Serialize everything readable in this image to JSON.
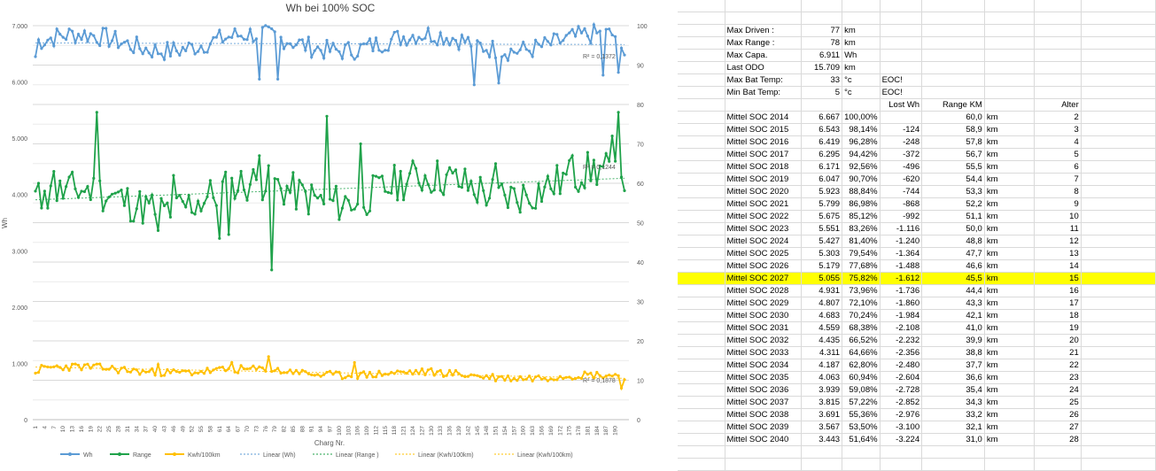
{
  "chart_data": {
    "type": "line",
    "title": "Wh bei 100% SOC",
    "xlabel": "Charg Nr.",
    "ylabel": "Wh",
    "y_left_ticks": [
      "0",
      "1.000",
      "2.000",
      "3.000",
      "4.000",
      "5.000",
      "6.000",
      "7.000"
    ],
    "y_left_lim": [
      0,
      7000
    ],
    "y_right_ticks": [
      "0",
      "10",
      "20",
      "30",
      "40",
      "50",
      "60",
      "70",
      "80",
      "90",
      "100"
    ],
    "y_right_lim": [
      0,
      100
    ],
    "x_ticks": [
      "1",
      "4",
      "7",
      "10",
      "13",
      "16",
      "19",
      "22",
      "25",
      "28",
      "31",
      "34",
      "37",
      "40",
      "43",
      "46",
      "49",
      "52",
      "55",
      "58",
      "61",
      "64",
      "67",
      "70",
      "73",
      "76",
      "79",
      "82",
      "85",
      "88",
      "91",
      "94",
      "97",
      "100",
      "103",
      "106",
      "109",
      "112",
      "115",
      "118",
      "121",
      "124",
      "127",
      "130",
      "133",
      "136",
      "139",
      "142",
      "145",
      "148",
      "151",
      "154",
      "157",
      "160",
      "163",
      "166",
      "169",
      "172",
      "175",
      "178",
      "181",
      "184",
      "187",
      "190"
    ],
    "grid": true,
    "legend_position": "bottom",
    "legend": [
      "Wh",
      "Range",
      "Kwh/100km",
      "Linear (Wh)",
      "Linear (Range )",
      "Linear (Kwh/100km)",
      "Linear (Kwh/100km)"
    ],
    "annotations": [
      "R² = 0,1372",
      "R² = 0,1244",
      "R² = 0,1878"
    ],
    "colors": {
      "wh": "#5b9bd5",
      "range": "#1fa24a",
      "kwh": "#ffc000"
    },
    "series": [
      {
        "name": "Wh",
        "axis": "left",
        "key": "wh",
        "base": 6700,
        "amp": 150,
        "noise": 180,
        "seed": 7,
        "end": [
          6600,
          6480
        ],
        "dips": [
          [
            73,
            6050
          ],
          [
            79,
            6050
          ],
          [
            143,
            5950
          ],
          [
            151,
            5980
          ],
          [
            185,
            6120
          ],
          [
            190,
            6170
          ]
        ],
        "first": [
          6450,
          6750
        ]
      },
      {
        "name": "Range",
        "axis": "right",
        "key": "range",
        "base": 58,
        "amp": 3,
        "noise": 5,
        "seed": 11,
        "trend": [
          0.03,
          -3
        ],
        "spikes": [
          [
            20,
            78
          ],
          [
            95,
            77
          ],
          [
            3,
            58
          ],
          [
            6,
            63
          ],
          [
            45,
            62
          ],
          [
            73,
            27
          ],
          [
            77,
            38
          ],
          [
            40,
            48
          ],
          [
            63,
            47
          ],
          [
            60,
            46
          ],
          [
            73,
            67
          ],
          [
            106,
            70
          ],
          [
            150,
            65
          ],
          [
            190,
            78
          ],
          [
            188,
            72
          ],
          [
            175,
            67
          ]
        ],
        "first": [
          58,
          60
        ]
      },
      {
        "name": "Kwh/100km",
        "axis": "right",
        "key": "kwh",
        "base": 12,
        "amp": 0.6,
        "noise": 1,
        "seed": 23,
        "trend": [
          -0.012,
          1
        ],
        "spikes": [
          [
            40,
            14
          ],
          [
            64,
            14.5
          ],
          [
            76,
            16
          ],
          [
            104,
            14.5
          ],
          [
            85,
            12.5
          ],
          [
            191,
            8
          ]
        ],
        "first": [
          11.8,
          12
        ]
      }
    ]
  },
  "sheet": {
    "summary": [
      {
        "label": "Max Driven :",
        "value": "77",
        "unit": "km",
        "note": ""
      },
      {
        "label": "Max Range :",
        "value": "78",
        "unit": "km",
        "note": ""
      },
      {
        "label": "Max Capa.",
        "value": "6.911",
        "unit": "Wh",
        "note": ""
      },
      {
        "label": "Last ODO",
        "value": "15.709",
        "unit": "km",
        "note": ""
      },
      {
        "label": "Max Bat Temp:",
        "value": "33",
        "unit": "°c",
        "note": "EOC!"
      },
      {
        "label": "Min Bat Temp:",
        "value": "5",
        "unit": "°c",
        "note": "EOC!"
      }
    ],
    "headers": {
      "lost": "Lost Wh",
      "range": "Range KM",
      "age": "Alter"
    },
    "rows": [
      {
        "label": "Mittel SOC 2014",
        "wh": "6.667",
        "pct": "100,00%",
        "lost": "",
        "km": "60,0",
        "unit": "km",
        "age": "2"
      },
      {
        "label": "Mittel SOC 2015",
        "wh": "6.543",
        "pct": "98,14%",
        "lost": "-124",
        "km": "58,9",
        "unit": "km",
        "age": "3"
      },
      {
        "label": "Mittel SOC 2016",
        "wh": "6.419",
        "pct": "96,28%",
        "lost": "-248",
        "km": "57,8",
        "unit": "km",
        "age": "4"
      },
      {
        "label": "Mittel SOC 2017",
        "wh": "6.295",
        "pct": "94,42%",
        "lost": "-372",
        "km": "56,7",
        "unit": "km",
        "age": "5"
      },
      {
        "label": "Mittel SOC 2018",
        "wh": "6.171",
        "pct": "92,56%",
        "lost": "-496",
        "km": "55,5",
        "unit": "km",
        "age": "6"
      },
      {
        "label": "Mittel SOC 2019",
        "wh": "6.047",
        "pct": "90,70%",
        "lost": "-620",
        "km": "54,4",
        "unit": "km",
        "age": "7"
      },
      {
        "label": "Mittel SOC 2020",
        "wh": "5.923",
        "pct": "88,84%",
        "lost": "-744",
        "km": "53,3",
        "unit": "km",
        "age": "8"
      },
      {
        "label": "Mittel SOC 2021",
        "wh": "5.799",
        "pct": "86,98%",
        "lost": "-868",
        "km": "52,2",
        "unit": "km",
        "age": "9"
      },
      {
        "label": "Mittel SOC 2022",
        "wh": "5.675",
        "pct": "85,12%",
        "lost": "-992",
        "km": "51,1",
        "unit": "km",
        "age": "10"
      },
      {
        "label": "Mittel SOC 2023",
        "wh": "5.551",
        "pct": "83,26%",
        "lost": "-1.116",
        "km": "50,0",
        "unit": "km",
        "age": "11"
      },
      {
        "label": "Mittel SOC 2024",
        "wh": "5.427",
        "pct": "81,40%",
        "lost": "-1.240",
        "km": "48,8",
        "unit": "km",
        "age": "12"
      },
      {
        "label": "Mittel SOC 2025",
        "wh": "5.303",
        "pct": "79,54%",
        "lost": "-1.364",
        "km": "47,7",
        "unit": "km",
        "age": "13"
      },
      {
        "label": "Mittel SOC 2026",
        "wh": "5.179",
        "pct": "77,68%",
        "lost": "-1.488",
        "km": "46,6",
        "unit": "km",
        "age": "14"
      },
      {
        "label": "Mittel SOC 2027",
        "wh": "5.055",
        "pct": "75,82%",
        "lost": "-1.612",
        "km": "45,5",
        "unit": "km",
        "age": "15",
        "highlight": true
      },
      {
        "label": "Mittel SOC 2028",
        "wh": "4.931",
        "pct": "73,96%",
        "lost": "-1.736",
        "km": "44,4",
        "unit": "km",
        "age": "16"
      },
      {
        "label": "Mittel SOC 2029",
        "wh": "4.807",
        "pct": "72,10%",
        "lost": "-1.860",
        "km": "43,3",
        "unit": "km",
        "age": "17"
      },
      {
        "label": "Mittel SOC 2030",
        "wh": "4.683",
        "pct": "70,24%",
        "lost": "-1.984",
        "km": "42,1",
        "unit": "km",
        "age": "18"
      },
      {
        "label": "Mittel SOC 2031",
        "wh": "4.559",
        "pct": "68,38%",
        "lost": "-2.108",
        "km": "41,0",
        "unit": "km",
        "age": "19"
      },
      {
        "label": "Mittel SOC 2032",
        "wh": "4.435",
        "pct": "66,52%",
        "lost": "-2.232",
        "km": "39,9",
        "unit": "km",
        "age": "20"
      },
      {
        "label": "Mittel SOC 2033",
        "wh": "4.311",
        "pct": "64,66%",
        "lost": "-2.356",
        "km": "38,8",
        "unit": "km",
        "age": "21"
      },
      {
        "label": "Mittel SOC 2034",
        "wh": "4.187",
        "pct": "62,80%",
        "lost": "-2.480",
        "km": "37,7",
        "unit": "km",
        "age": "22"
      },
      {
        "label": "Mittel SOC 2035",
        "wh": "4.063",
        "pct": "60,94%",
        "lost": "-2.604",
        "km": "36,6",
        "unit": "km",
        "age": "23"
      },
      {
        "label": "Mittel SOC 2036",
        "wh": "3.939",
        "pct": "59,08%",
        "lost": "-2.728",
        "km": "35,4",
        "unit": "km",
        "age": "24"
      },
      {
        "label": "Mittel SOC 2037",
        "wh": "3.815",
        "pct": "57,22%",
        "lost": "-2.852",
        "km": "34,3",
        "unit": "km",
        "age": "25"
      },
      {
        "label": "Mittel SOC 2038",
        "wh": "3.691",
        "pct": "55,36%",
        "lost": "-2.976",
        "km": "33,2",
        "unit": "km",
        "age": "26"
      },
      {
        "label": "Mittel SOC 2039",
        "wh": "3.567",
        "pct": "53,50%",
        "lost": "-3.100",
        "km": "32,1",
        "unit": "km",
        "age": "27"
      },
      {
        "label": "Mittel SOC 2040",
        "wh": "3.443",
        "pct": "51,64%",
        "lost": "-3.224",
        "km": "31,0",
        "unit": "km",
        "age": "28"
      }
    ]
  }
}
